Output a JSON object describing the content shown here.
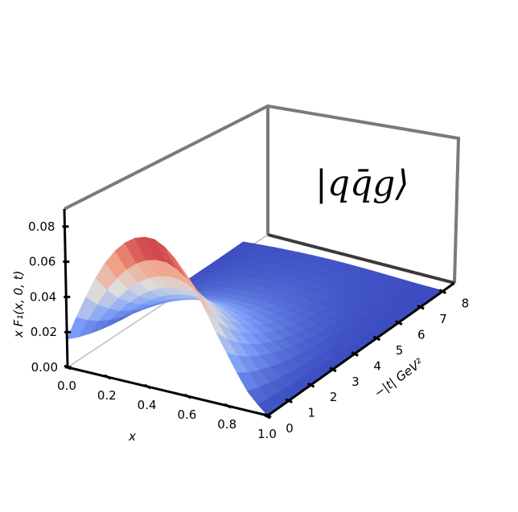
{
  "chart_data": {
    "type": "surface",
    "annotation": "|q̅q g⟩",
    "annotation_display": "|qq̄g⟩",
    "xlabel": "x",
    "ylabel": "−|t| GeV²",
    "zlabel": "x F₁(x, 0, t)",
    "xlim": [
      0.0,
      1.0
    ],
    "ylim": [
      0,
      8.5
    ],
    "zlim": [
      0.0,
      0.09
    ],
    "x_ticks": [
      "0.0",
      "0.2",
      "0.4",
      "0.6",
      "0.8",
      "1.0"
    ],
    "y_ticks": [
      "0",
      "1",
      "2",
      "3",
      "4",
      "5",
      "6",
      "7",
      "8"
    ],
    "z_ticks": [
      "0.00",
      "0.02",
      "0.04",
      "0.06",
      "0.08"
    ],
    "colormap": "coolwarm",
    "grid": false,
    "x_grid": [
      0.0,
      0.05,
      0.1,
      0.15,
      0.2,
      0.25,
      0.3,
      0.35,
      0.4,
      0.45,
      0.5,
      0.55,
      0.6,
      0.65,
      0.7,
      0.75,
      0.8,
      0.85,
      0.9,
      0.95,
      1.0
    ],
    "t_grid": [
      0,
      0.5,
      1,
      1.5,
      2,
      2.5,
      3,
      3.5,
      4,
      4.5,
      5,
      5.5,
      6,
      6.5,
      7,
      7.5,
      8
    ],
    "z_at_t0": [
      0.016,
      0.03,
      0.043,
      0.055,
      0.065,
      0.073,
      0.079,
      0.083,
      0.085,
      0.085,
      0.082,
      0.077,
      0.07,
      0.061,
      0.051,
      0.04,
      0.03,
      0.02,
      0.011,
      0.005,
      0.0
    ],
    "t_falloff_scale": 2.2
  }
}
